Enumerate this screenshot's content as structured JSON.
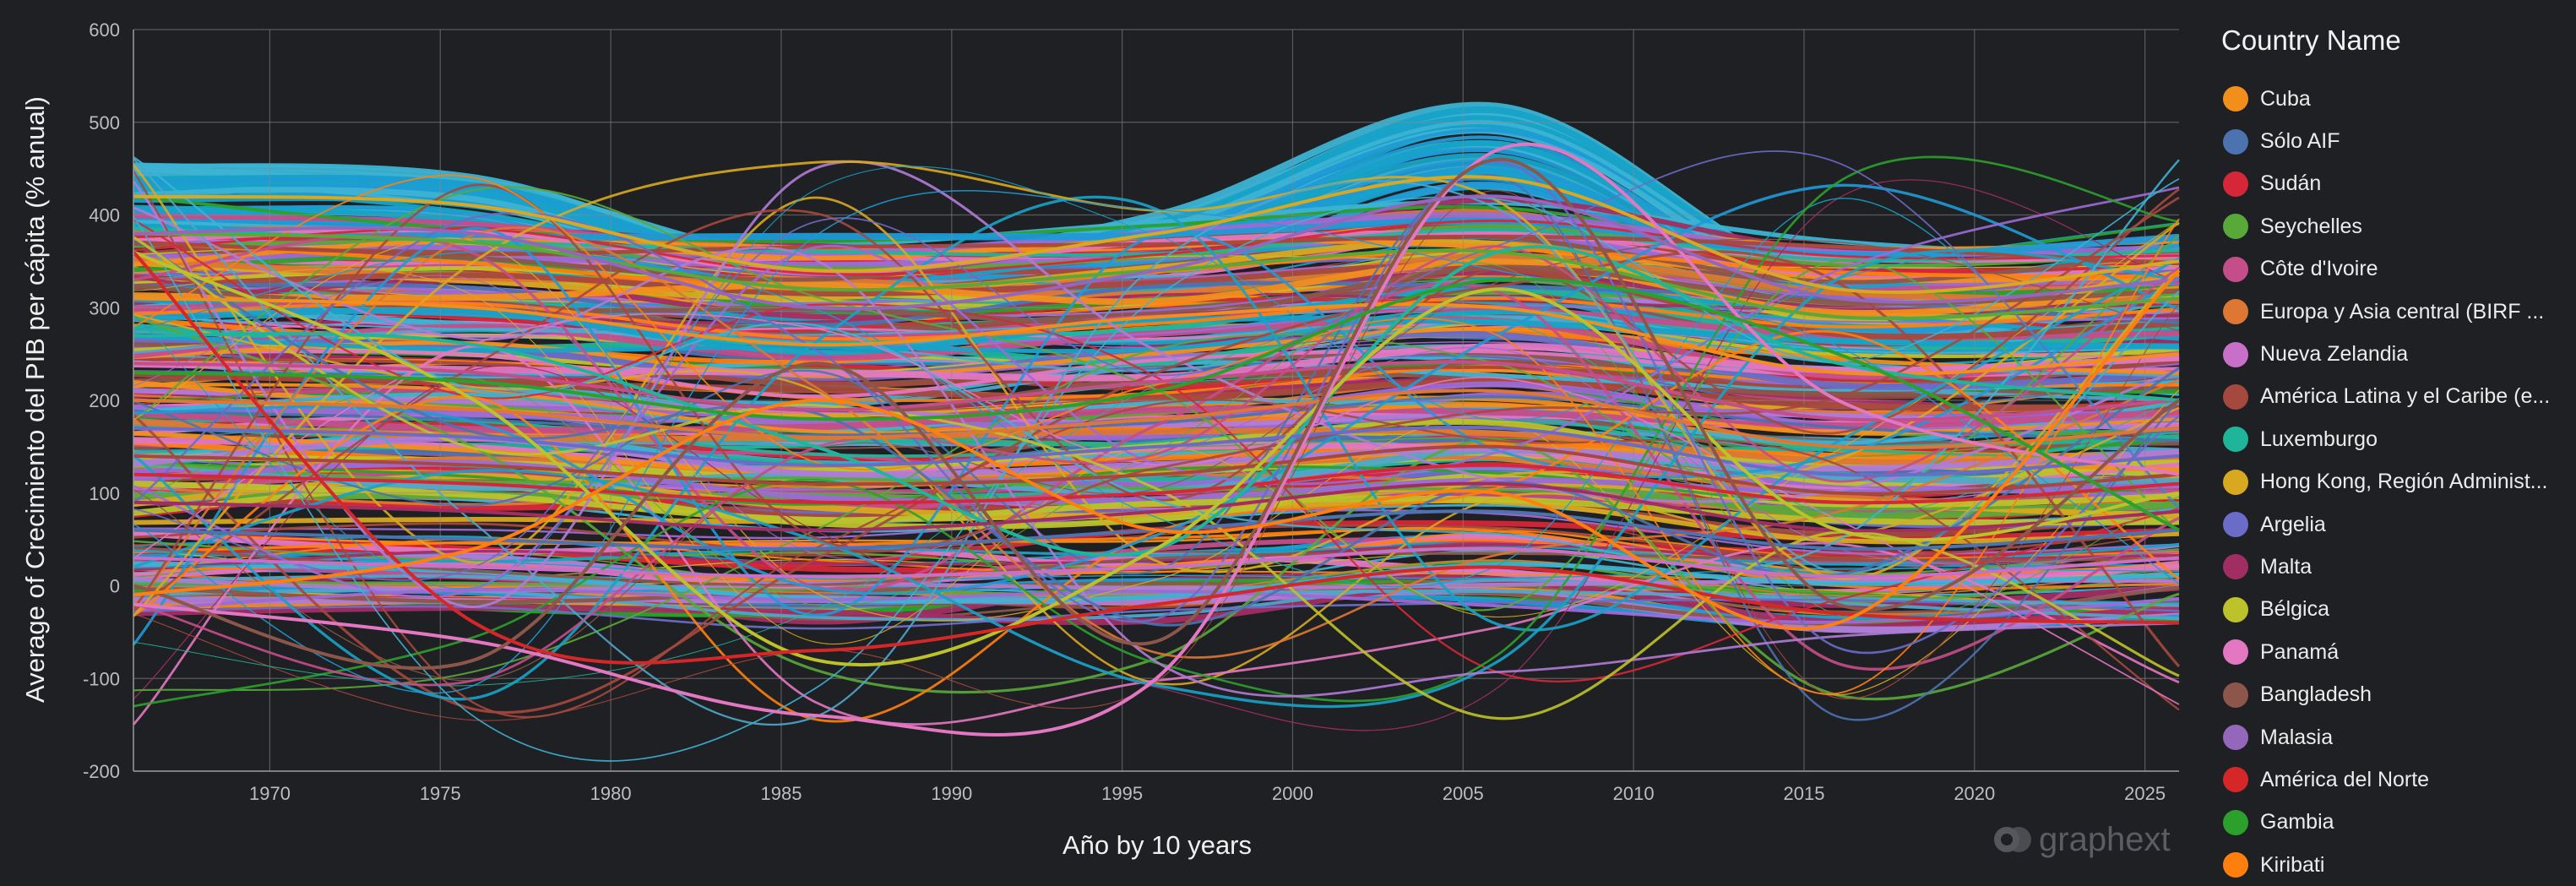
{
  "chart_data": {
    "type": "line",
    "title": "",
    "xlabel": "Año by 10 years",
    "ylabel": "Average of Crecimiento del PIB per cápita (% anual)",
    "xlim": [
      1966,
      2026
    ],
    "ylim": [
      -200,
      600
    ],
    "x_ticks": [
      "1970",
      "1975",
      "1980",
      "1985",
      "1990",
      "1995",
      "2000",
      "2005",
      "2010",
      "2015",
      "2020",
      "2025"
    ],
    "y_ticks": [
      "-200",
      "-100",
      "0",
      "100",
      "200",
      "300",
      "400",
      "500",
      "600"
    ],
    "grid": true,
    "legend_position": "right",
    "legend_title": "Country Name",
    "x": [
      1966,
      1976,
      1986,
      1996,
      2006,
      2016,
      2026
    ],
    "series": [
      {
        "name": "Cuba",
        "color": "#f28e1c",
        "values": [
          310,
          300,
          260,
          290,
          300,
          230,
          250
        ]
      },
      {
        "name": "Sólo AIF",
        "color": "#4c72b0",
        "values": [
          60,
          50,
          40,
          60,
          80,
          40,
          60
        ]
      },
      {
        "name": "Sudán",
        "color": "#d62738",
        "values": [
          120,
          110,
          90,
          100,
          130,
          90,
          110
        ]
      },
      {
        "name": "Seychelles",
        "color": "#59a83a",
        "values": [
          380,
          370,
          320,
          340,
          360,
          290,
          310
        ]
      },
      {
        "name": "Côte d'Ivoire",
        "color": "#c44e8a",
        "values": [
          240,
          230,
          190,
          220,
          240,
          180,
          200
        ]
      },
      {
        "name": "Europa y Asia central (BIRF ...",
        "color": "#dd7733",
        "values": [
          200,
          190,
          160,
          180,
          210,
          150,
          170
        ]
      },
      {
        "name": "Nueva Zelandia",
        "color": "#c86fc9",
        "values": [
          30,
          20,
          10,
          20,
          40,
          10,
          30
        ]
      },
      {
        "name": "América Latina y el Caribe (e...",
        "color": "#a5483e",
        "values": [
          140,
          130,
          110,
          120,
          150,
          100,
          120
        ]
      },
      {
        "name": "Luxemburgo",
        "color": "#1fb59a",
        "values": [
          270,
          260,
          150,
          40,
          360,
          240,
          200
        ]
      },
      {
        "name": "Hong Kong, Región Administ...",
        "color": "#d8a820",
        "values": [
          420,
          410,
          340,
          380,
          440,
          320,
          350
        ]
      },
      {
        "name": "Argelia",
        "color": "#6a6cc7",
        "values": [
          170,
          160,
          130,
          150,
          170,
          120,
          140
        ]
      },
      {
        "name": "Malta",
        "color": "#a12e62",
        "values": [
          90,
          80,
          60,
          80,
          110,
          60,
          80
        ]
      },
      {
        "name": "Bélgica",
        "color": "#bcc22a",
        "values": [
          360,
          200,
          -80,
          40,
          320,
          60,
          100
        ]
      },
      {
        "name": "Panamá",
        "color": "#e377c2",
        "values": [
          -20,
          -60,
          -140,
          -100,
          470,
          200,
          120
        ]
      },
      {
        "name": "Bangladesh",
        "color": "#8c564b",
        "values": [
          0,
          -80,
          240,
          -60,
          460,
          -20,
          200
        ]
      },
      {
        "name": "Malasia",
        "color": "#9467bd",
        "values": [
          380,
          380,
          300,
          340,
          420,
          310,
          330
        ]
      },
      {
        "name": "América del Norte",
        "color": "#d62728",
        "values": [
          360,
          -40,
          -70,
          -20,
          20,
          -30,
          -40
        ]
      },
      {
        "name": "Gambia",
        "color": "#2ca02c",
        "values": [
          230,
          220,
          180,
          210,
          330,
          250,
          60
        ]
      },
      {
        "name": "Kiribati",
        "color": "#ff7f0e",
        "values": [
          -10,
          40,
          200,
          60,
          100,
          -40,
          340
        ]
      }
    ]
  },
  "watermark": "graphext"
}
